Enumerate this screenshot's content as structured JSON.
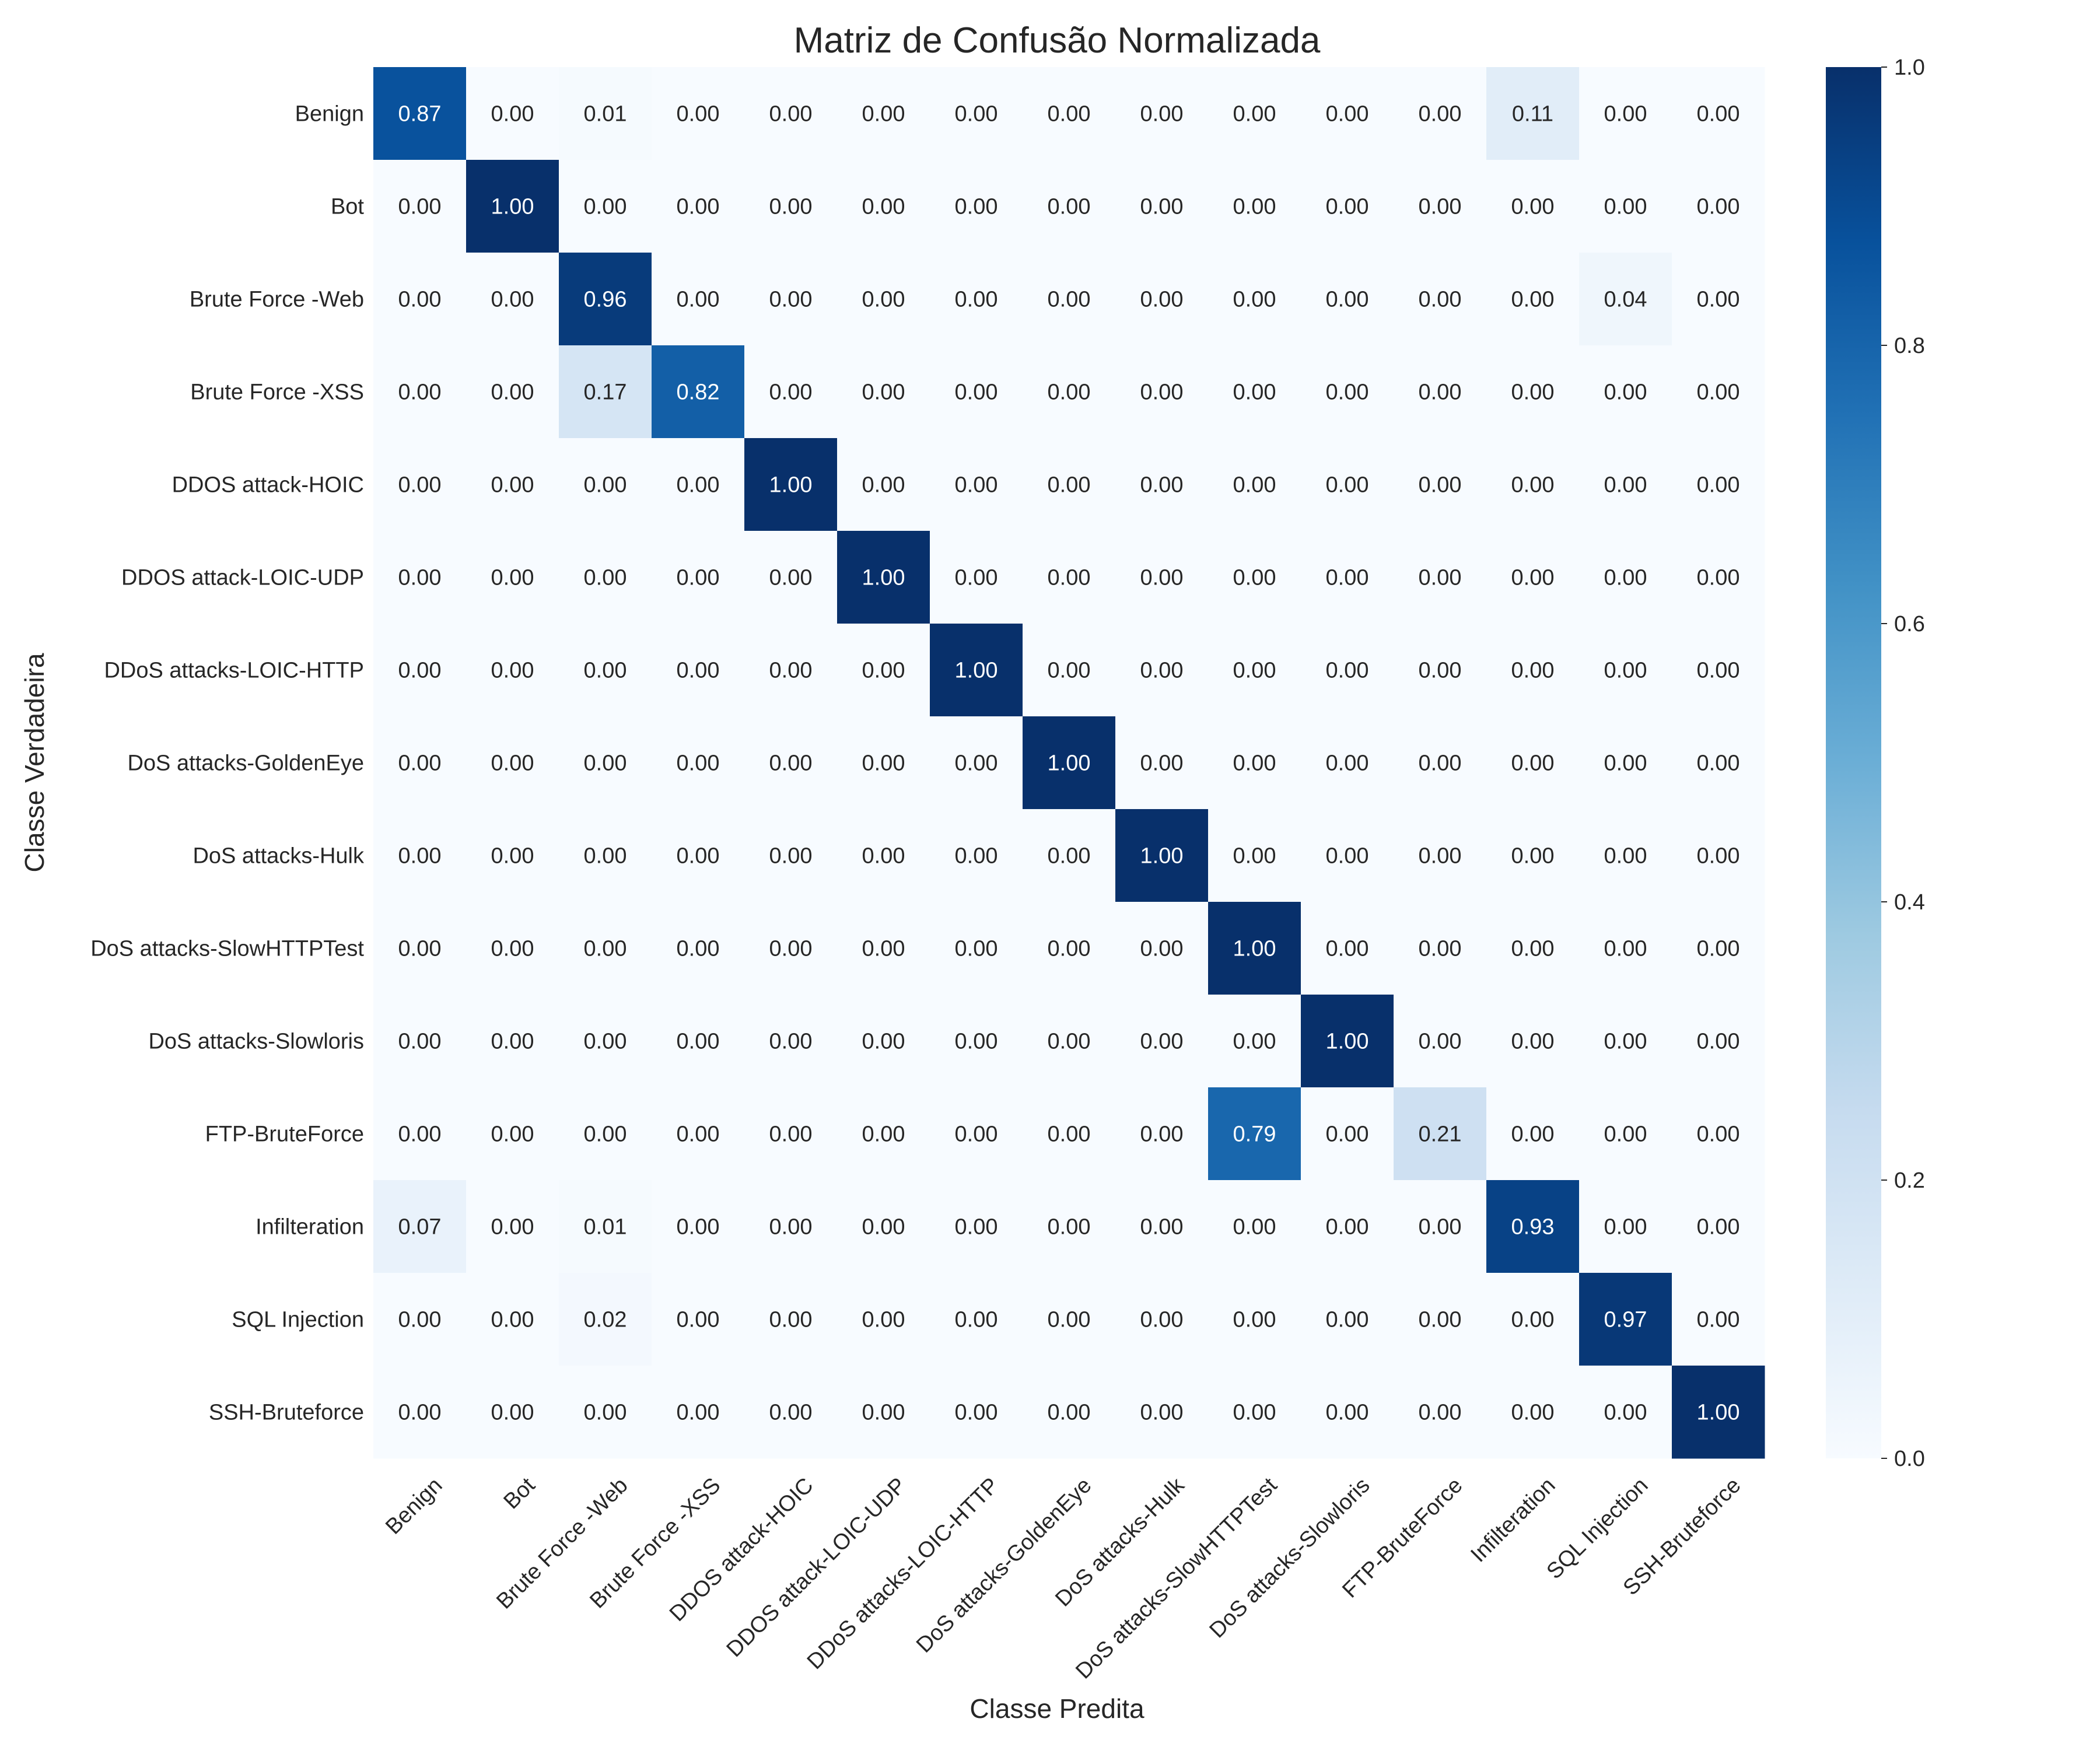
{
  "chart_data": {
    "type": "heatmap",
    "title": "Matriz de Confusão Normalizada",
    "xlabel": "Classe Predita",
    "ylabel": "Classe Verdadeira",
    "x_categories": [
      "Benign",
      "Bot",
      "Brute Force -Web",
      "Brute Force -XSS",
      "DDOS attack-HOIC",
      "DDOS attack-LOIC-UDP",
      "DDoS attacks-LOIC-HTTP",
      "DoS attacks-GoldenEye",
      "DoS attacks-Hulk",
      "DoS attacks-SlowHTTPTest",
      "DoS attacks-Slowloris",
      "FTP-BruteForce",
      "Infilteration",
      "SQL Injection",
      "SSH-Bruteforce"
    ],
    "y_categories": [
      "Benign",
      "Bot",
      "Brute Force -Web",
      "Brute Force -XSS",
      "DDOS attack-HOIC",
      "DDOS attack-LOIC-UDP",
      "DDoS attacks-LOIC-HTTP",
      "DoS attacks-GoldenEye",
      "DoS attacks-Hulk",
      "DoS attacks-SlowHTTPTest",
      "DoS attacks-Slowloris",
      "FTP-BruteForce",
      "Infilteration",
      "SQL Injection",
      "SSH-Bruteforce"
    ],
    "values": [
      [
        0.87,
        0.0,
        0.01,
        0.0,
        0.0,
        0.0,
        0.0,
        0.0,
        0.0,
        0.0,
        0.0,
        0.0,
        0.11,
        0.0,
        0.0
      ],
      [
        0.0,
        1.0,
        0.0,
        0.0,
        0.0,
        0.0,
        0.0,
        0.0,
        0.0,
        0.0,
        0.0,
        0.0,
        0.0,
        0.0,
        0.0
      ],
      [
        0.0,
        0.0,
        0.96,
        0.0,
        0.0,
        0.0,
        0.0,
        0.0,
        0.0,
        0.0,
        0.0,
        0.0,
        0.0,
        0.04,
        0.0
      ],
      [
        0.0,
        0.0,
        0.17,
        0.82,
        0.0,
        0.0,
        0.0,
        0.0,
        0.0,
        0.0,
        0.0,
        0.0,
        0.0,
        0.0,
        0.0
      ],
      [
        0.0,
        0.0,
        0.0,
        0.0,
        1.0,
        0.0,
        0.0,
        0.0,
        0.0,
        0.0,
        0.0,
        0.0,
        0.0,
        0.0,
        0.0
      ],
      [
        0.0,
        0.0,
        0.0,
        0.0,
        0.0,
        1.0,
        0.0,
        0.0,
        0.0,
        0.0,
        0.0,
        0.0,
        0.0,
        0.0,
        0.0
      ],
      [
        0.0,
        0.0,
        0.0,
        0.0,
        0.0,
        0.0,
        1.0,
        0.0,
        0.0,
        0.0,
        0.0,
        0.0,
        0.0,
        0.0,
        0.0
      ],
      [
        0.0,
        0.0,
        0.0,
        0.0,
        0.0,
        0.0,
        0.0,
        1.0,
        0.0,
        0.0,
        0.0,
        0.0,
        0.0,
        0.0,
        0.0
      ],
      [
        0.0,
        0.0,
        0.0,
        0.0,
        0.0,
        0.0,
        0.0,
        0.0,
        1.0,
        0.0,
        0.0,
        0.0,
        0.0,
        0.0,
        0.0
      ],
      [
        0.0,
        0.0,
        0.0,
        0.0,
        0.0,
        0.0,
        0.0,
        0.0,
        0.0,
        1.0,
        0.0,
        0.0,
        0.0,
        0.0,
        0.0
      ],
      [
        0.0,
        0.0,
        0.0,
        0.0,
        0.0,
        0.0,
        0.0,
        0.0,
        0.0,
        0.0,
        1.0,
        0.0,
        0.0,
        0.0,
        0.0
      ],
      [
        0.0,
        0.0,
        0.0,
        0.0,
        0.0,
        0.0,
        0.0,
        0.0,
        0.0,
        0.79,
        0.0,
        0.21,
        0.0,
        0.0,
        0.0
      ],
      [
        0.07,
        0.0,
        0.01,
        0.0,
        0.0,
        0.0,
        0.0,
        0.0,
        0.0,
        0.0,
        0.0,
        0.0,
        0.93,
        0.0,
        0.0
      ],
      [
        0.0,
        0.0,
        0.02,
        0.0,
        0.0,
        0.0,
        0.0,
        0.0,
        0.0,
        0.0,
        0.0,
        0.0,
        0.0,
        0.97,
        0.0
      ],
      [
        0.0,
        0.0,
        0.0,
        0.0,
        0.0,
        0.0,
        0.0,
        0.0,
        0.0,
        0.0,
        0.0,
        0.0,
        0.0,
        0.0,
        1.0
      ]
    ],
    "colormap": "Blues",
    "vmin": 0.0,
    "vmax": 1.0,
    "colorbar_ticks": [
      "0.0",
      "0.2",
      "0.4",
      "0.6",
      "0.8",
      "1.0"
    ],
    "grid": false,
    "annotations_format": "2 decimals"
  }
}
